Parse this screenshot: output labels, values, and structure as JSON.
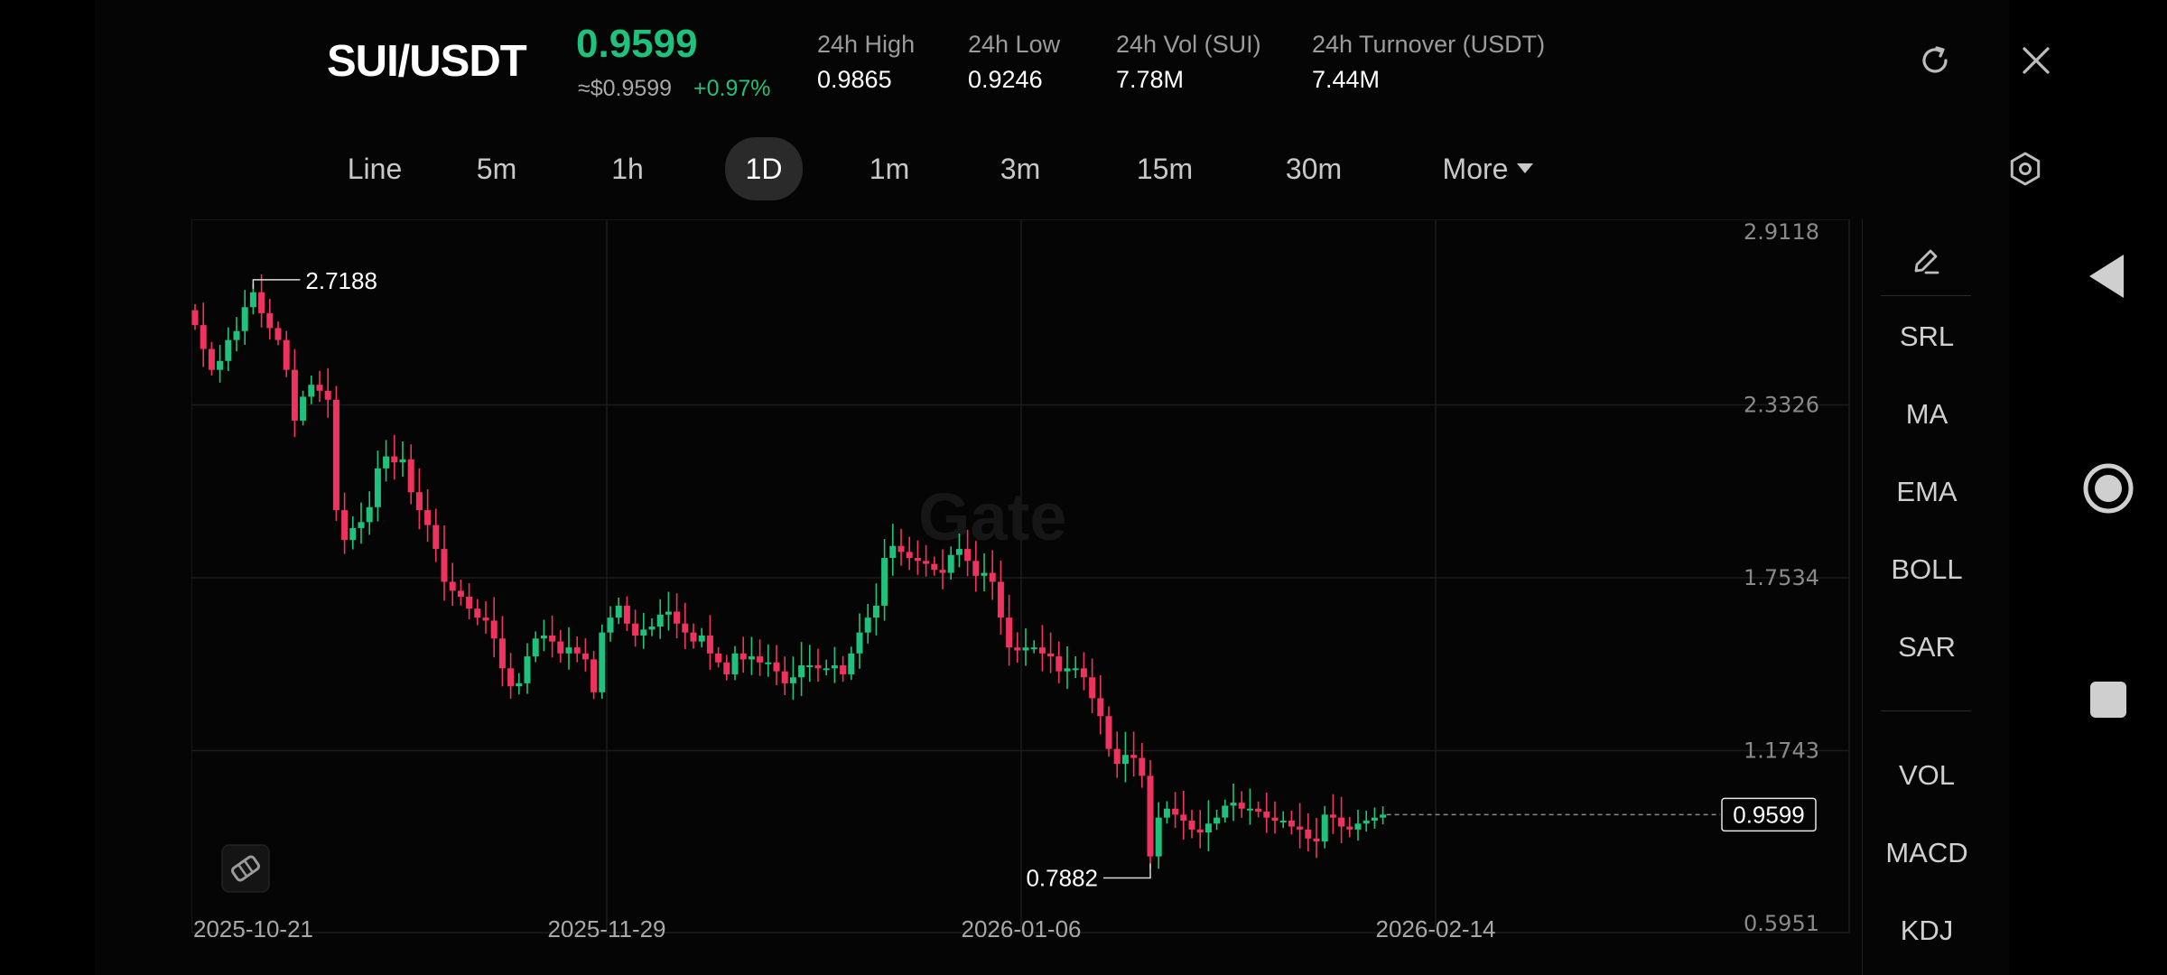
{
  "header": {
    "pair": "SUI/USDT",
    "price": "0.9599",
    "fiat_price": "≈$0.9599",
    "change": "+0.97%",
    "stats": [
      {
        "label": "24h   High",
        "value": "0.9865"
      },
      {
        "label": "24h   Low",
        "value": "0.9246"
      },
      {
        "label": "24h   Vol (SUI)",
        "value": "7.78M"
      },
      {
        "label": "24h   Turnover (USDT)",
        "value": "7.44M"
      }
    ],
    "icons": {
      "refresh": "refresh-icon",
      "close": "close-icon"
    }
  },
  "tabs": [
    {
      "label": "Line",
      "active": false
    },
    {
      "label": "5m",
      "active": false
    },
    {
      "label": "1h",
      "active": false
    },
    {
      "label": "1D",
      "active": true
    },
    {
      "label": "1m",
      "active": false
    },
    {
      "label": "3m",
      "active": false
    },
    {
      "label": "15m",
      "active": false
    },
    {
      "label": "30m",
      "active": false
    },
    {
      "label": "More",
      "active": false
    }
  ],
  "indicators": [
    "SRL",
    "MA",
    "EMA",
    "BOLL",
    "SAR",
    "VOL",
    "MACD",
    "KDJ"
  ],
  "chart_data": {
    "type": "candlestick",
    "watermark": "Gate",
    "colors": {
      "up": "#1fc27d",
      "down": "#f0325f",
      "grid": "#1c1c1c"
    },
    "y_ticks": [
      "2.9118",
      "2.3326",
      "1.7534",
      "1.1743",
      "0.5951"
    ],
    "x_ticks": [
      "2025-10-21",
      "2025-11-29",
      "2026-01-06",
      "2026-02-14"
    ],
    "ylim": [
      0.5951,
      2.9118
    ],
    "high_label": "2.7188",
    "low_label": "0.7882",
    "last_price": "0.9599",
    "close_series": [
      2.6,
      2.52,
      2.45,
      2.48,
      2.55,
      2.58,
      2.66,
      2.71,
      2.64,
      2.59,
      2.55,
      2.45,
      2.28,
      2.36,
      2.4,
      2.38,
      2.35,
      1.98,
      1.88,
      1.92,
      1.94,
      1.99,
      2.12,
      2.16,
      2.14,
      2.15,
      2.04,
      1.98,
      1.93,
      1.85,
      1.74,
      1.71,
      1.69,
      1.65,
      1.62,
      1.61,
      1.55,
      1.45,
      1.39,
      1.4,
      1.49,
      1.55,
      1.56,
      1.54,
      1.5,
      1.52,
      1.5,
      1.48,
      1.37,
      1.57,
      1.62,
      1.66,
      1.6,
      1.56,
      1.58,
      1.59,
      1.63,
      1.64,
      1.6,
      1.57,
      1.54,
      1.56,
      1.5,
      1.47,
      1.43,
      1.5,
      1.48,
      1.49,
      1.47,
      1.47,
      1.44,
      1.4,
      1.42,
      1.46,
      1.46,
      1.45,
      1.45,
      1.46,
      1.43,
      1.5,
      1.57,
      1.62,
      1.66,
      1.82,
      1.86,
      1.84,
      1.82,
      1.81,
      1.8,
      1.78,
      1.77,
      1.83,
      1.85,
      1.81,
      1.76,
      1.77,
      1.74,
      1.62,
      1.52,
      1.51,
      1.52,
      1.52,
      1.5,
      1.49,
      1.44,
      1.45,
      1.45,
      1.42,
      1.35,
      1.29,
      1.18,
      1.13,
      1.16,
      1.15,
      1.09,
      0.82,
      0.95,
      0.98,
      0.96,
      0.94,
      0.91,
      0.9,
      0.93,
      0.95,
      0.99,
      1.0,
      0.98,
      0.98,
      0.97,
      0.95,
      0.94,
      0.94,
      0.92,
      0.91,
      0.88,
      0.87,
      0.96,
      0.95,
      0.92,
      0.91,
      0.93,
      0.94,
      0.95,
      0.96
    ]
  }
}
